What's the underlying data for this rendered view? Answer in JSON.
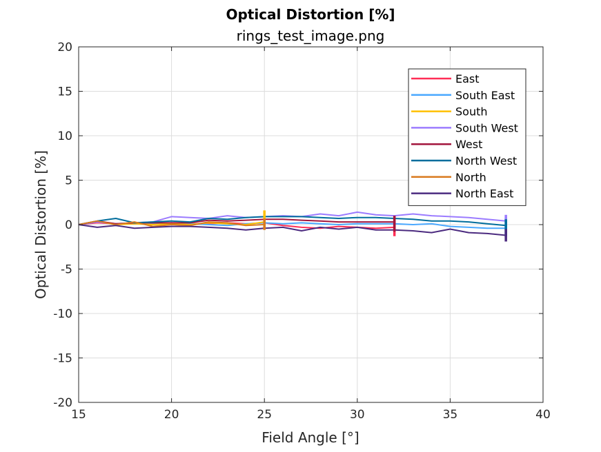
{
  "chart_data": {
    "type": "line",
    "title": "Optical Distortion [%]",
    "subtitle": "rings_test_image.png",
    "xlabel": "Field Angle [°]",
    "ylabel": "Optical Distortion [%]",
    "xlim": [
      15,
      40
    ],
    "ylim": [
      -20,
      20
    ],
    "xticks": [
      15,
      20,
      25,
      30,
      35,
      40
    ],
    "yticks": [
      -20,
      -15,
      -10,
      -5,
      0,
      5,
      10,
      15,
      20
    ],
    "grid": true,
    "legend_position": "top-right",
    "series": [
      {
        "name": "East",
        "color": "#ff2d55",
        "x": [
          15,
          16,
          17,
          18,
          19,
          20,
          21,
          22,
          23,
          24,
          25,
          26,
          27,
          28,
          29,
          30,
          31,
          32
        ],
        "y": [
          0,
          0.2,
          0.1,
          0.1,
          0.2,
          0.1,
          0.1,
          0.1,
          0.2,
          0.1,
          0.2,
          -0.1,
          -0.3,
          -0.4,
          -0.2,
          -0.3,
          -0.4,
          -0.3
        ],
        "error_bar": {
          "x": 32,
          "low": -1.3,
          "high": 0.8
        }
      },
      {
        "name": "South East",
        "color": "#4aa8ff",
        "x": [
          15,
          16,
          17,
          18,
          19,
          20,
          21,
          22,
          23,
          24,
          25,
          26,
          27,
          28,
          29,
          30,
          31,
          32,
          33,
          34,
          35,
          36,
          37,
          38
        ],
        "y": [
          0,
          0.3,
          0.1,
          0.2,
          0.1,
          0.2,
          0.1,
          0.0,
          -0.1,
          0.1,
          0.2,
          0.1,
          0.2,
          0.1,
          0.0,
          0.1,
          0.1,
          0.1,
          0.0,
          0.1,
          -0.2,
          -0.3,
          -0.4,
          -0.4
        ],
        "error_bar": {
          "x": 38,
          "low": -1.2,
          "high": 0.8
        }
      },
      {
        "name": "South",
        "color": "#ffc000",
        "x": [
          15,
          16,
          17,
          18,
          19,
          20,
          21,
          22,
          23,
          24,
          25
        ],
        "y": [
          0,
          0.4,
          0.0,
          0.1,
          0.0,
          0.1,
          0.0,
          0.2,
          0.1,
          0.0,
          0.3
        ],
        "error_bar": {
          "x": 25,
          "low": -0.5,
          "high": 1.6
        }
      },
      {
        "name": "South West",
        "color": "#9b7bff",
        "x": [
          15,
          16,
          17,
          18,
          19,
          20,
          21,
          22,
          23,
          24,
          25,
          26,
          27,
          28,
          29,
          30,
          31,
          32,
          33,
          34,
          35,
          36,
          37,
          38
        ],
        "y": [
          0,
          0.3,
          0.1,
          0.2,
          0.3,
          0.9,
          0.8,
          0.7,
          1.0,
          0.8,
          0.9,
          1.0,
          0.9,
          1.2,
          1.0,
          1.4,
          1.1,
          1.0,
          1.2,
          1.0,
          0.9,
          0.8,
          0.6,
          0.4
        ],
        "error_bar": {
          "x": 38,
          "low": -0.6,
          "high": 1.1
        }
      },
      {
        "name": "West",
        "color": "#a2143c",
        "x": [
          15,
          16,
          17,
          18,
          19,
          20,
          21,
          22,
          23,
          24,
          25,
          26,
          27,
          28,
          29,
          30,
          31,
          32
        ],
        "y": [
          0,
          0.4,
          0.1,
          0.2,
          0.2,
          0.2,
          0.2,
          0.5,
          0.4,
          0.5,
          0.6,
          0.6,
          0.5,
          0.4,
          0.3,
          0.3,
          0.3,
          0.3
        ],
        "error_bar": {
          "x": 32,
          "low": -0.8,
          "high": 1.0
        }
      },
      {
        "name": "North West",
        "color": "#006d9c",
        "x": [
          15,
          16,
          17,
          18,
          19,
          20,
          21,
          22,
          23,
          24,
          25,
          26,
          27,
          28,
          29,
          30,
          31,
          32,
          33,
          34,
          35,
          36,
          37,
          38
        ],
        "y": [
          0,
          0.4,
          0.7,
          0.2,
          0.3,
          0.4,
          0.3,
          0.7,
          0.6,
          0.8,
          0.9,
          0.9,
          0.9,
          0.8,
          0.7,
          0.8,
          0.8,
          0.7,
          0.6,
          0.4,
          0.4,
          0.3,
          0.1,
          -0.1
        ],
        "error_bar": {
          "x": 38,
          "low": -1.3,
          "high": 0.6
        }
      },
      {
        "name": "North",
        "color": "#d97a1e",
        "x": [
          15,
          16,
          17,
          18,
          19,
          20,
          21,
          22,
          23,
          24,
          25
        ],
        "y": [
          0,
          0.4,
          0.0,
          0.3,
          -0.2,
          0.0,
          -0.1,
          0.3,
          0.2,
          -0.1,
          0.0
        ],
        "error_bar": {
          "x": 25,
          "low": -0.6,
          "high": 0.7
        }
      },
      {
        "name": "North East",
        "color": "#4b2a7f",
        "x": [
          15,
          16,
          17,
          18,
          19,
          20,
          21,
          22,
          23,
          24,
          25,
          26,
          27,
          28,
          29,
          30,
          31,
          32,
          33,
          34,
          35,
          36,
          37,
          38
        ],
        "y": [
          0,
          -0.3,
          -0.1,
          -0.4,
          -0.3,
          -0.2,
          -0.2,
          -0.3,
          -0.4,
          -0.6,
          -0.4,
          -0.3,
          -0.7,
          -0.3,
          -0.5,
          -0.3,
          -0.6,
          -0.6,
          -0.7,
          -0.9,
          -0.5,
          -0.9,
          -1.0,
          -1.2
        ],
        "error_bar": {
          "x": 38,
          "low": -1.9,
          "high": -0.5
        }
      }
    ]
  }
}
